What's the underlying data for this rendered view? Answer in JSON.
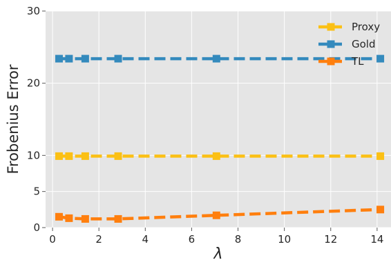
{
  "chart_data": {
    "type": "line",
    "xlabel": "λ",
    "ylabel": "Frobenius Error",
    "xlim": [
      -0.3,
      14.6
    ],
    "ylim": [
      0,
      30
    ],
    "x_ticks": [
      0,
      2,
      4,
      6,
      8,
      10,
      12,
      14
    ],
    "y_ticks": [
      0,
      5,
      10,
      20,
      30
    ],
    "grid": true,
    "legend_position": "top-right",
    "series": [
      {
        "name": "Proxy",
        "color": "#fbc015",
        "style": "dashed",
        "marker": "square",
        "x": [
          0.28,
          0.71,
          1.41,
          2.83,
          7.07,
          14.14
        ],
        "y": [
          9.9,
          9.9,
          9.9,
          9.9,
          9.9,
          9.9
        ]
      },
      {
        "name": "Gold",
        "color": "#348abd",
        "style": "dashed",
        "marker": "square",
        "x": [
          0.28,
          0.71,
          1.41,
          2.83,
          7.07,
          14.14
        ],
        "y": [
          23.4,
          23.4,
          23.4,
          23.4,
          23.4,
          23.4
        ]
      },
      {
        "name": "TL",
        "color": "#ff7f0e",
        "style": "dashed",
        "marker": "square",
        "x": [
          0.28,
          0.71,
          1.41,
          2.83,
          7.07,
          14.14
        ],
        "y": [
          1.5,
          1.3,
          1.2,
          1.2,
          1.7,
          2.5
        ]
      }
    ]
  }
}
